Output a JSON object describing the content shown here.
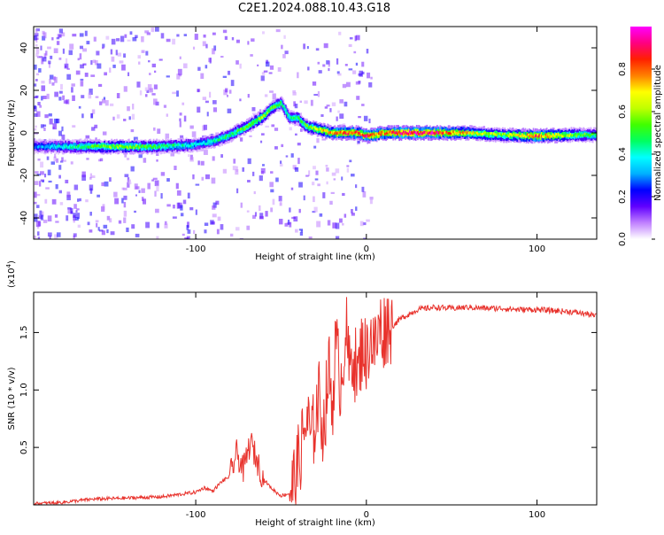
{
  "title": "C2E1.2024.088.10.43.G18",
  "colors": {
    "snr_line": "#e8322c",
    "spectro_bg": "#ffffff",
    "axis": "#000000"
  },
  "chart_data": [
    {
      "type": "heatmap",
      "name": "spectrogram",
      "xlabel": "Height of straight line (km)",
      "ylabel": "Frequency (Hz)",
      "xlim": [
        -195,
        135
      ],
      "ylim": [
        -50,
        50
      ],
      "x_ticks": [
        -100,
        0,
        100
      ],
      "y_ticks": [
        -40,
        -20,
        0,
        20,
        40
      ],
      "grid": false,
      "colorbar": {
        "label": "Normalized spectral amplitude",
        "range": [
          0,
          1
        ],
        "ticks": [
          "0.0",
          "0.2",
          "0.4",
          "0.6",
          "0.8"
        ],
        "colormap": [
          "#ffffff",
          "#c080ff",
          "#6000ff",
          "#0000ff",
          "#00b0ff",
          "#00ffff",
          "#00ff60",
          "#40ff00",
          "#c0ff00",
          "#ffff00",
          "#ff8000",
          "#ff2000",
          "#ff0080",
          "#ff00ff"
        ]
      },
      "ridge": {
        "x": [
          -195,
          -180,
          -160,
          -140,
          -120,
          -100,
          -90,
          -80,
          -70,
          -60,
          -55,
          -50,
          -45,
          -40,
          -35,
          -30,
          -25,
          -20,
          -15,
          -10,
          -5,
          0,
          5,
          10,
          20,
          40,
          60,
          80,
          100,
          120,
          135
        ],
        "y": [
          -6.5,
          -6.5,
          -6.5,
          -6.5,
          -6.5,
          -5.5,
          -4,
          -1,
          3,
          8,
          12,
          14,
          7,
          7,
          3,
          2,
          1,
          0,
          0,
          0,
          0,
          -1.5,
          -1,
          0,
          0,
          0,
          0,
          -1,
          -1.5,
          -1,
          -1
        ],
        "amplitude": [
          0.3,
          0.4,
          0.55,
          0.6,
          0.5,
          0.4,
          0.45,
          0.5,
          0.55,
          0.6,
          0.55,
          0.5,
          0.45,
          0.5,
          0.55,
          0.65,
          0.75,
          0.8,
          0.85,
          0.85,
          0.8,
          0.9,
          0.8,
          0.8,
          0.95,
          0.9,
          0.7,
          0.6,
          0.85,
          0.6,
          0.5
        ]
      }
    },
    {
      "type": "line",
      "name": "snr",
      "xlabel": "Height of straight line (km)",
      "ylabel": "SNR (10 * v/v)",
      "scale_label": "(x10",
      "scale_exp": "4",
      "scale_close": ")",
      "xlim": [
        -195,
        135
      ],
      "ylim": [
        0,
        1.85
      ],
      "x_ticks": [
        -100,
        0,
        100
      ],
      "y_ticks": [
        "0.5",
        "1.0",
        "1.5"
      ],
      "grid": false,
      "series": [
        {
          "x": [
            -195,
            -180,
            -160,
            -140,
            -120,
            -110,
            -100,
            -95,
            -90,
            -85,
            -80,
            -76,
            -72,
            -68,
            -64,
            -60,
            -56,
            -52,
            -50,
            -45,
            -42,
            -40,
            -38,
            -35,
            -32,
            -28,
            -25,
            -22,
            -20,
            -18,
            -15,
            -12,
            -10,
            -8,
            -5,
            -2,
            0,
            2,
            5,
            8,
            10,
            12,
            15,
            20,
            25,
            30,
            35,
            40,
            50,
            60,
            70,
            80,
            90,
            100,
            110,
            120,
            130,
            135
          ],
          "y": [
            0.01,
            0.02,
            0.05,
            0.06,
            0.07,
            0.09,
            0.11,
            0.15,
            0.12,
            0.2,
            0.25,
            0.45,
            0.3,
            0.55,
            0.38,
            0.22,
            0.15,
            0.1,
            0.08,
            0.1,
            0.22,
            0.35,
            0.5,
            0.75,
            0.55,
            0.95,
            0.65,
            1.2,
            0.85,
            1.4,
            1.05,
            1.55,
            1.15,
            1.35,
            1.1,
            1.45,
            1.25,
            1.5,
            1.35,
            1.55,
            1.5,
            1.58,
            1.55,
            1.62,
            1.66,
            1.7,
            1.71,
            1.72,
            1.71,
            1.72,
            1.71,
            1.71,
            1.7,
            1.7,
            1.69,
            1.68,
            1.66,
            1.64
          ]
        }
      ]
    }
  ]
}
